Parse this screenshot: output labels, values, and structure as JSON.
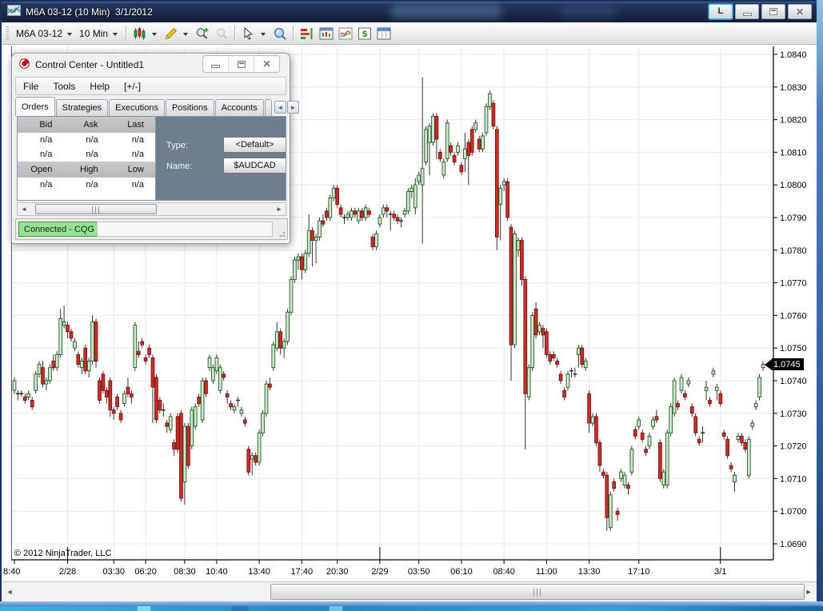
{
  "window": {
    "title": "M6A 03-12 (10 Min)  3/1/2012",
    "link_button": "L"
  },
  "toolbar": {
    "instrument": "M6A 03-12",
    "interval": "10 Min"
  },
  "control_center": {
    "title": "Control Center - Untitled1",
    "menu": [
      "File",
      "Tools",
      "Help",
      "[+/-]"
    ],
    "tabs": [
      "Orders",
      "Strategies",
      "Executions",
      "Positions",
      "Accounts",
      "Ac"
    ],
    "orders_tab": {
      "quote_headers": [
        "Bid",
        "Ask",
        "Last"
      ],
      "quote_rows": [
        [
          "n/a",
          "n/a",
          "n/a"
        ],
        [
          "n/a",
          "n/a",
          "n/a"
        ]
      ],
      "ohl_headers": [
        "Open",
        "High",
        "Low"
      ],
      "ohl_rows": [
        [
          "n/a",
          "n/a",
          "n/a"
        ]
      ],
      "type_label": "Type:",
      "type_value": "<Default>",
      "name_label": "Name:",
      "name_value": "$AUDCAD"
    },
    "status": "Connected - CQG"
  },
  "chart": {
    "copyright": "© 2012 NinjaTrader, LLC",
    "last_price_label": "1.0745",
    "colors": {
      "up_fill": "#cfe8cf",
      "up_stroke": "#1f5c1f",
      "down_fill": "#c5302b",
      "down_stroke": "#7c100e",
      "wick": "#1c1c1c",
      "axis": "#000000",
      "grid": "#e9e9e9",
      "marker_bg": "#000000",
      "marker_text": "#ffffff"
    }
  },
  "chart_data": {
    "type": "candlestick",
    "instrument": "M6A 03-12",
    "interval": "10 Min",
    "session_date": "3/1/2012",
    "last_price": 1.0745,
    "ylim": [
      1.0685,
      1.0845
    ],
    "grid": true,
    "y_ticks": [
      1.084,
      1.083,
      1.082,
      1.081,
      1.08,
      1.079,
      1.078,
      1.077,
      1.076,
      1.075,
      1.074,
      1.073,
      1.072,
      1.071,
      1.07,
      1.069
    ],
    "x_ticks": [
      {
        "label": "8:40",
        "i": 0
      },
      {
        "label": "2/28",
        "i": 15
      },
      {
        "label": "03:30",
        "i": 28
      },
      {
        "label": "06:20",
        "i": 37
      },
      {
        "label": "08:30",
        "i": 48
      },
      {
        "label": "10:40",
        "i": 57
      },
      {
        "label": "13:40",
        "i": 69
      },
      {
        "label": "17:40",
        "i": 81
      },
      {
        "label": "20:30",
        "i": 91
      },
      {
        "label": "2/29",
        "i": 103
      },
      {
        "label": "03:50",
        "i": 114
      },
      {
        "label": "06:10",
        "i": 126
      },
      {
        "label": "08:40",
        "i": 138
      },
      {
        "label": "11:00",
        "i": 150
      },
      {
        "label": "13:30",
        "i": 162
      },
      {
        "label": "17:10",
        "i": 176
      },
      {
        "label": "3/1",
        "i": 199
      }
    ],
    "date_tick_indices": [
      15,
      103,
      199
    ],
    "candles": [
      [
        1.0737,
        1.0741,
        1.0736,
        1.074
      ],
      [
        1.0736,
        1.0737,
        1.0734,
        1.0736
      ],
      [
        1.0736,
        1.0737,
        1.0735,
        1.0736
      ],
      [
        1.0735,
        1.0736,
        1.0733,
        1.0734
      ],
      [
        1.0735,
        1.0737,
        1.0734,
        1.0736
      ],
      [
        1.0734,
        1.0735,
        1.0731,
        1.0732
      ],
      [
        1.0737,
        1.0743,
        1.0736,
        1.0742
      ],
      [
        1.0742,
        1.0746,
        1.0741,
        1.0745
      ],
      [
        1.0744,
        1.0746,
        1.0738,
        1.0739
      ],
      [
        1.0739,
        1.0741,
        1.0737,
        1.074
      ],
      [
        1.074,
        1.0745,
        1.0739,
        1.0744
      ],
      [
        1.0746,
        1.0748,
        1.0743,
        1.0744
      ],
      [
        1.0744,
        1.0749,
        1.0743,
        1.0748
      ],
      [
        1.0748,
        1.0762,
        1.0747,
        1.0759
      ],
      [
        1.0757,
        1.0763,
        1.0756,
        1.0758
      ],
      [
        1.0757,
        1.0758,
        1.0753,
        1.0755
      ],
      [
        1.0755,
        1.0756,
        1.0752,
        1.0753
      ],
      [
        1.075,
        1.0753,
        1.0749,
        1.0752
      ],
      [
        1.0748,
        1.0749,
        1.0744,
        1.0745
      ],
      [
        1.0744,
        1.0747,
        1.0742,
        1.0746
      ],
      [
        1.075,
        1.0751,
        1.0742,
        1.0743
      ],
      [
        1.0743,
        1.0747,
        1.0741,
        1.0746
      ],
      [
        1.0746,
        1.076,
        1.0745,
        1.0758
      ],
      [
        1.0758,
        1.0759,
        1.0744,
        1.0746
      ],
      [
        1.074,
        1.0741,
        1.0733,
        1.0734
      ],
      [
        1.0742,
        1.0743,
        1.0736,
        1.0737
      ],
      [
        1.0737,
        1.0738,
        1.0733,
        1.0735
      ],
      [
        1.074,
        1.0741,
        1.0729,
        1.0731
      ],
      [
        1.0731,
        1.0732,
        1.0728,
        1.073
      ],
      [
        1.0735,
        1.0736,
        1.0731,
        1.0732
      ],
      [
        1.073,
        1.0731,
        1.0727,
        1.0728
      ],
      [
        1.0733,
        1.0737,
        1.0732,
        1.0736
      ],
      [
        1.0738,
        1.0741,
        1.0735,
        1.0736
      ],
      [
        1.0736,
        1.0737,
        1.0733,
        1.0735
      ],
      [
        1.0744,
        1.0758,
        1.0743,
        1.0757
      ],
      [
        1.0749,
        1.0752,
        1.0747,
        1.0748
      ],
      [
        1.0752,
        1.0753,
        1.075,
        1.0751
      ],
      [
        1.0747,
        1.0748,
        1.0745,
        1.0746
      ],
      [
        1.075,
        1.0751,
        1.0747,
        1.0748
      ],
      [
        1.0747,
        1.0748,
        1.0727,
        1.0738
      ],
      [
        1.0741,
        1.0742,
        1.0727,
        1.0728
      ],
      [
        1.0734,
        1.0735,
        1.073,
        1.0731
      ],
      [
        1.0731,
        1.0733,
        1.0729,
        1.0731
      ],
      [
        1.0727,
        1.0728,
        1.0724,
        1.0726
      ],
      [
        1.0725,
        1.073,
        1.0724,
        1.0729
      ],
      [
        1.0721,
        1.0722,
        1.0717,
        1.0719
      ],
      [
        1.0729,
        1.073,
        1.0718,
        1.0719
      ],
      [
        1.073,
        1.0731,
        1.0703,
        1.0704
      ],
      [
        1.0709,
        1.0727,
        1.0702,
        1.0726
      ],
      [
        1.0726,
        1.0727,
        1.0713,
        1.0714
      ],
      [
        1.072,
        1.0732,
        1.0719,
        1.0731
      ],
      [
        1.0726,
        1.0733,
        1.0725,
        1.0732
      ],
      [
        1.0735,
        1.0736,
        1.0732,
        1.0733
      ],
      [
        1.0728,
        1.0741,
        1.0727,
        1.074
      ],
      [
        1.074,
        1.0741,
        1.0735,
        1.0736
      ],
      [
        1.0744,
        1.0748,
        1.0743,
        1.0747
      ],
      [
        1.074,
        1.0745,
        1.0739,
        1.0744
      ],
      [
        1.0743,
        1.0748,
        1.0742,
        1.0747
      ],
      [
        1.0737,
        1.0745,
        1.0736,
        1.0744
      ],
      [
        1.0742,
        1.0743,
        1.074,
        1.0741
      ],
      [
        1.0736,
        1.0737,
        1.0733,
        1.0735
      ],
      [
        1.0733,
        1.0734,
        1.0731,
        1.0732
      ],
      [
        1.0731,
        1.0733,
        1.073,
        1.0732
      ],
      [
        1.0734,
        1.0735,
        1.0732,
        1.0734
      ],
      [
        1.073,
        1.0732,
        1.0729,
        1.0731
      ],
      [
        1.0728,
        1.0729,
        1.0726,
        1.0727
      ],
      [
        1.0719,
        1.072,
        1.0711,
        1.0712
      ],
      [
        1.0716,
        1.0718,
        1.0711,
        1.0717
      ],
      [
        1.0717,
        1.0718,
        1.0714,
        1.0715
      ],
      [
        1.0715,
        1.0725,
        1.0714,
        1.0724
      ],
      [
        1.0724,
        1.0731,
        1.0723,
        1.073
      ],
      [
        1.073,
        1.074,
        1.0729,
        1.0739
      ],
      [
        1.0739,
        1.0741,
        1.0737,
        1.0738
      ],
      [
        1.0744,
        1.0752,
        1.0743,
        1.0751
      ],
      [
        1.075,
        1.0758,
        1.0749,
        1.0755
      ],
      [
        1.0755,
        1.0756,
        1.0748,
        1.075
      ],
      [
        1.075,
        1.0753,
        1.0747,
        1.0752
      ],
      [
        1.0752,
        1.0762,
        1.0751,
        1.0761
      ],
      [
        1.0761,
        1.0772,
        1.076,
        1.0771
      ],
      [
        1.0771,
        1.0778,
        1.077,
        1.0777
      ],
      [
        1.0777,
        1.0779,
        1.0774,
        1.0778
      ],
      [
        1.0778,
        1.0779,
        1.0771,
        1.0774
      ],
      [
        1.0774,
        1.078,
        1.0773,
        1.0779
      ],
      [
        1.0779,
        1.0791,
        1.0778,
        1.0786
      ],
      [
        1.0786,
        1.0787,
        1.0775,
        1.0783
      ],
      [
        1.0783,
        1.0785,
        1.0776,
        1.0784
      ],
      [
        1.0784,
        1.079,
        1.0783,
        1.0789
      ],
      [
        1.0789,
        1.0791,
        1.0787,
        1.0788
      ],
      [
        1.0792,
        1.0793,
        1.0789,
        1.079
      ],
      [
        1.079,
        1.0797,
        1.0789,
        1.0796
      ],
      [
        1.0796,
        1.08,
        1.0795,
        1.0799
      ],
      [
        1.0799,
        1.08,
        1.0793,
        1.0794
      ],
      [
        1.0793,
        1.0794,
        1.079,
        1.0791
      ],
      [
        1.079,
        1.0791,
        1.0788,
        1.079
      ],
      [
        1.079,
        1.0792,
        1.0789,
        1.0791
      ],
      [
        1.079,
        1.0793,
        1.0789,
        1.0792
      ],
      [
        1.0792,
        1.0793,
        1.079,
        1.0791
      ],
      [
        1.0789,
        1.0793,
        1.0788,
        1.0792
      ],
      [
        1.0792,
        1.0793,
        1.0789,
        1.079
      ],
      [
        1.079,
        1.0794,
        1.0789,
        1.0793
      ],
      [
        1.0792,
        1.0793,
        1.079,
        1.0791
      ],
      [
        1.0784,
        1.0785,
        1.078,
        1.0781
      ],
      [
        1.0781,
        1.0786,
        1.078,
        1.0785
      ],
      [
        1.0788,
        1.0791,
        1.0787,
        1.079
      ],
      [
        1.0791,
        1.0794,
        1.079,
        1.0793
      ],
      [
        1.0793,
        1.0794,
        1.079,
        1.0792
      ],
      [
        1.0791,
        1.0792,
        1.0786,
        1.0791
      ],
      [
        1.0791,
        1.0792,
        1.0789,
        1.079
      ],
      [
        1.079,
        1.0791,
        1.0788,
        1.0789
      ],
      [
        1.0789,
        1.079,
        1.0787,
        1.0789
      ],
      [
        1.0791,
        1.0793,
        1.079,
        1.0792
      ],
      [
        1.0792,
        1.0799,
        1.0791,
        1.0798
      ],
      [
        1.0798,
        1.08,
        1.0796,
        1.0799
      ],
      [
        1.0793,
        1.0802,
        1.0791,
        1.08
      ],
      [
        1.0801,
        1.0804,
        1.08,
        1.0803
      ],
      [
        1.08,
        1.0833,
        1.0782,
        1.0805
      ],
      [
        1.0807,
        1.0818,
        1.0806,
        1.0817
      ],
      [
        1.0813,
        1.0819,
        1.0803,
        1.0818
      ],
      [
        1.0813,
        1.0822,
        1.0812,
        1.0821
      ],
      [
        1.0821,
        1.0822,
        1.0808,
        1.0814
      ],
      [
        1.081,
        1.0811,
        1.0807,
        1.0808
      ],
      [
        1.0803,
        1.0808,
        1.0802,
        1.0807
      ],
      [
        1.0808,
        1.082,
        1.0807,
        1.0819
      ],
      [
        1.0812,
        1.0813,
        1.0809,
        1.081
      ],
      [
        1.0809,
        1.081,
        1.0806,
        1.0807
      ],
      [
        1.081,
        1.0813,
        1.0809,
        1.0812
      ],
      [
        1.0806,
        1.0807,
        1.0803,
        1.0804
      ],
      [
        1.0808,
        1.0816,
        1.0804,
        1.0811
      ],
      [
        1.0813,
        1.0814,
        1.08,
        1.0809
      ],
      [
        1.0817,
        1.0818,
        1.0809,
        1.081
      ],
      [
        1.0817,
        1.082,
        1.0816,
        1.0819
      ],
      [
        1.0814,
        1.0815,
        1.081,
        1.0811
      ],
      [
        1.0811,
        1.0816,
        1.081,
        1.0815
      ],
      [
        1.0816,
        1.0825,
        1.0815,
        1.0824
      ],
      [
        1.0824,
        1.0829,
        1.0823,
        1.0828
      ],
      [
        1.0825,
        1.0826,
        1.0817,
        1.0818
      ],
      [
        1.0817,
        1.0818,
        1.078,
        1.0784
      ],
      [
        1.0794,
        1.08,
        1.0783,
        1.0799
      ],
      [
        1.08,
        1.0802,
        1.0798,
        1.0801
      ],
      [
        1.0801,
        1.0802,
        1.0789,
        1.079
      ],
      [
        1.0787,
        1.0788,
        1.074,
        1.0751
      ],
      [
        1.0751,
        1.0786,
        1.075,
        1.0785
      ],
      [
        1.078,
        1.0784,
        1.0778,
        1.0783
      ],
      [
        1.0783,
        1.0784,
        1.0769,
        1.0771
      ],
      [
        1.0771,
        1.0772,
        1.0719,
        1.0736
      ],
      [
        1.0735,
        1.0745,
        1.0734,
        1.0744
      ],
      [
        1.0744,
        1.0761,
        1.0743,
        1.076
      ],
      [
        1.0762,
        1.0764,
        1.0753,
        1.0754
      ],
      [
        1.0755,
        1.0758,
        1.0754,
        1.0757
      ],
      [
        1.0756,
        1.0757,
        1.075,
        1.0754
      ],
      [
        1.0755,
        1.0756,
        1.0747,
        1.0748
      ],
      [
        1.0748,
        1.0749,
        1.0745,
        1.0746
      ],
      [
        1.0748,
        1.0749,
        1.0746,
        1.0747
      ],
      [
        1.0746,
        1.0747,
        1.0744,
        1.0745
      ],
      [
        1.0742,
        1.0743,
        1.0739,
        1.074
      ],
      [
        1.0737,
        1.0738,
        1.0734,
        1.0735
      ],
      [
        1.0738,
        1.0743,
        1.0737,
        1.0742
      ],
      [
        1.0743,
        1.0744,
        1.0741,
        1.0743
      ],
      [
        1.0742,
        1.0744,
        1.0741,
        1.0742
      ],
      [
        1.0748,
        1.0751,
        1.0744,
        1.075
      ],
      [
        1.075,
        1.0751,
        1.0744,
        1.0745
      ],
      [
        1.0744,
        1.0747,
        1.0743,
        1.0746
      ],
      [
        1.0736,
        1.0737,
        1.0724,
        1.0727
      ],
      [
        1.0727,
        1.073,
        1.0726,
        1.0729
      ],
      [
        1.0729,
        1.073,
        1.072,
        1.0721
      ],
      [
        1.0721,
        1.0722,
        1.0712,
        1.0714
      ],
      [
        1.0712,
        1.0713,
        1.071,
        1.0711
      ],
      [
        1.0711,
        1.0712,
        1.0694,
        1.0698
      ],
      [
        1.0695,
        1.0706,
        1.0694,
        1.0705
      ],
      [
        1.0709,
        1.071,
        1.0706,
        1.0707
      ],
      [
        1.07,
        1.0701,
        1.0697,
        1.0699
      ],
      [
        1.071,
        1.0713,
        1.0709,
        1.0712
      ],
      [
        1.0708,
        1.0712,
        1.0707,
        1.0711
      ],
      [
        1.0708,
        1.0709,
        1.0705,
        1.0707
      ],
      [
        1.0712,
        1.072,
        1.0711,
        1.0719
      ],
      [
        1.0725,
        1.0726,
        1.0722,
        1.0723
      ],
      [
        1.0726,
        1.0729,
        1.0725,
        1.0728
      ],
      [
        1.0724,
        1.0725,
        1.0721,
        1.0722
      ],
      [
        1.0719,
        1.072,
        1.0717,
        1.0718
      ],
      [
        1.072,
        1.0724,
        1.0719,
        1.0723
      ],
      [
        1.0726,
        1.0729,
        1.0725,
        1.0728
      ],
      [
        1.0729,
        1.0731,
        1.0727,
        1.0728
      ],
      [
        1.0721,
        1.0722,
        1.0709,
        1.071
      ],
      [
        1.0708,
        1.0713,
        1.0707,
        1.0712
      ],
      [
        1.0708,
        1.0725,
        1.0707,
        1.0724
      ],
      [
        1.0724,
        1.0733,
        1.0723,
        1.0732
      ],
      [
        1.073,
        1.0741,
        1.0729,
        1.074
      ],
      [
        1.0733,
        1.0734,
        1.0731,
        1.0732
      ],
      [
        1.0737,
        1.0742,
        1.0736,
        1.0741
      ],
      [
        1.0736,
        1.0737,
        1.0734,
        1.0735
      ],
      [
        1.0739,
        1.0741,
        1.0738,
        1.074
      ],
      [
        1.0732,
        1.0733,
        1.0729,
        1.073
      ],
      [
        1.0729,
        1.073,
        1.0723,
        1.0724
      ],
      [
        1.0722,
        1.0723,
        1.072,
        1.0721
      ],
      [
        1.0724,
        1.0726,
        1.0721,
        1.0724
      ],
      [
        1.0737,
        1.074,
        1.0734,
        1.0738
      ],
      [
        1.0734,
        1.0735,
        1.0732,
        1.0733
      ],
      [
        1.0742,
        1.0744,
        1.0741,
        1.0743
      ],
      [
        1.0737,
        1.0739,
        1.0734,
        1.0738
      ],
      [
        1.0736,
        1.0737,
        1.0732,
        1.0733
      ],
      [
        1.0724,
        1.0725,
        1.0722,
        1.0723
      ],
      [
        1.0722,
        1.0723,
        1.0716,
        1.0717
      ],
      [
        1.0714,
        1.0715,
        1.0712,
        1.0713
      ],
      [
        1.0709,
        1.0712,
        1.0706,
        1.0711
      ],
      [
        1.0722,
        1.0724,
        1.0721,
        1.0723
      ],
      [
        1.0723,
        1.0724,
        1.072,
        1.0721
      ],
      [
        1.0721,
        1.0722,
        1.0718,
        1.0719
      ],
      [
        1.0711,
        1.0723,
        1.071,
        1.0722
      ],
      [
        1.0726,
        1.0728,
        1.0725,
        1.0727
      ],
      [
        1.0732,
        1.0734,
        1.0731,
        1.0733
      ],
      [
        1.0735,
        1.0742,
        1.0734,
        1.0741
      ],
      [
        1.0744,
        1.0746,
        1.0743,
        1.0745
      ]
    ]
  }
}
